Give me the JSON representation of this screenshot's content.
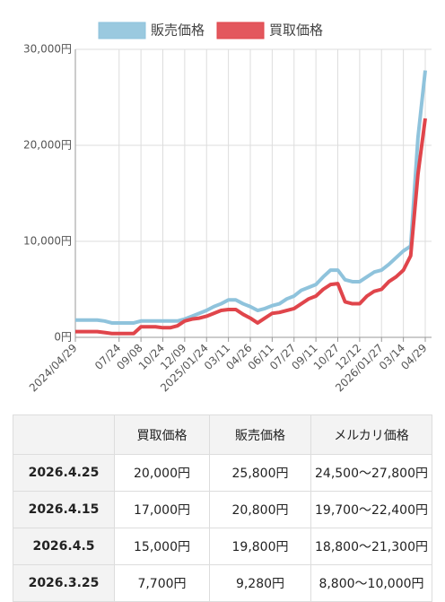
{
  "chart_data": {
    "type": "line",
    "categories": [
      "2024/04/29",
      null,
      null,
      null,
      null,
      null,
      "07/24",
      null,
      null,
      "09/08",
      null,
      null,
      "10/24",
      null,
      null,
      "12/09",
      null,
      null,
      "2025/01/24",
      null,
      null,
      "03/11",
      null,
      null,
      "04/26",
      null,
      null,
      "06/11",
      null,
      null,
      "07/27",
      null,
      null,
      "09/11",
      null,
      null,
      "10/27",
      null,
      null,
      "12/12",
      null,
      null,
      "2026/01/27",
      null,
      null,
      "03/14",
      null,
      null,
      "04/29"
    ],
    "series": [
      {
        "name": "販売価格",
        "color": "#8fc3dc",
        "values": [
          1800,
          1800,
          1800,
          1800,
          1700,
          1500,
          1500,
          1500,
          1500,
          1700,
          1700,
          1700,
          1700,
          1700,
          1700,
          1900,
          2200,
          2500,
          2800,
          3200,
          3500,
          3900,
          3900,
          3500,
          3200,
          2800,
          3000,
          3300,
          3500,
          4000,
          4300,
          4900,
          5200,
          5500,
          6300,
          7000,
          7000,
          6000,
          5800,
          5800,
          6300,
          6800,
          7000,
          7600,
          8300,
          9000,
          9500,
          20800,
          27800
        ]
      },
      {
        "name": "買取価格",
        "color": "#e0454b",
        "values": [
          600,
          600,
          600,
          600,
          500,
          400,
          400,
          400,
          400,
          1100,
          1100,
          1100,
          1000,
          1000,
          1200,
          1700,
          1900,
          2000,
          2200,
          2500,
          2800,
          2900,
          2900,
          2400,
          2000,
          1500,
          2000,
          2500,
          2600,
          2800,
          3000,
          3500,
          4000,
          4300,
          5000,
          5500,
          5600,
          3700,
          3500,
          3500,
          4300,
          4800,
          5000,
          5800,
          6300,
          7000,
          8500,
          17000,
          22800
        ]
      }
    ],
    "ylim": [
      0,
      30000
    ],
    "yticks": [
      {
        "value": 0,
        "label": "0円"
      },
      {
        "value": 10000,
        "label": "10,000円"
      },
      {
        "value": 20000,
        "label": "20,000円"
      },
      {
        "value": 30000,
        "label": "30,000円"
      }
    ],
    "grid": true,
    "legend": "top"
  },
  "table": {
    "header": [
      "買取価格",
      "販売価格",
      "メルカリ価格"
    ],
    "rows": [
      [
        "2026.4.25",
        "20,000円",
        "25,800円",
        "24,500〜27,800円"
      ],
      [
        "2026.4.15",
        "17,000円",
        "20,800円",
        "19,700〜22,400円"
      ],
      [
        "2026.4.5",
        "15,000円",
        "19,800円",
        "18,800〜21,300円"
      ],
      [
        "2026.3.25",
        "7,700円",
        "9,280円",
        "8,800〜10,000円"
      ]
    ]
  }
}
